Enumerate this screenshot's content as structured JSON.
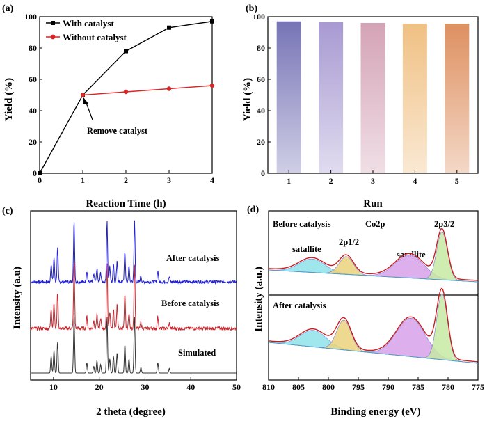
{
  "figure": {
    "panel_a": "(a)",
    "panel_b": "(b)",
    "panel_c": "(c)",
    "panel_d": "(d)"
  },
  "chart_data": [
    {
      "panel": "(a)",
      "type": "line",
      "title": "",
      "xlabel": "Reaction Time (h)",
      "ylabel": "Yield (%)",
      "xlim": [
        0,
        4
      ],
      "ylim": [
        0,
        100
      ],
      "xticks": [
        "0",
        "1",
        "2",
        "3",
        "4"
      ],
      "yticks": [
        "0",
        "20",
        "40",
        "60",
        "80",
        "100"
      ],
      "legend_position": "top-left",
      "series": [
        {
          "name": "With catalyst",
          "color": "#000000",
          "marker": "square",
          "x": [
            0,
            1,
            2,
            3,
            4
          ],
          "y": [
            0,
            50,
            78,
            93,
            97
          ]
        },
        {
          "name": "Without catalyst",
          "color": "#d62728",
          "marker": "circle",
          "x": [
            1,
            2,
            3,
            4
          ],
          "y": [
            50,
            52,
            54,
            56
          ]
        }
      ],
      "annotations": [
        {
          "text": "Remove catalyst",
          "x": 1,
          "y": 50
        }
      ]
    },
    {
      "panel": "(b)",
      "type": "bar",
      "title": "",
      "xlabel": "Run",
      "ylabel": "Yield (%)",
      "ylim": [
        0,
        100
      ],
      "yticks": [
        "0",
        "20",
        "40",
        "60",
        "80",
        "100"
      ],
      "categories": [
        "1",
        "2",
        "3",
        "4",
        "5"
      ],
      "values": [
        97,
        96.5,
        96,
        95.5,
        95.5
      ],
      "colors": [
        "#7774b6",
        "#a89ad2",
        "#d4a3b6",
        "#f0c083",
        "#de9060"
      ]
    },
    {
      "panel": "(c)",
      "type": "line",
      "title": "",
      "xlabel": "2 theta (degree)",
      "ylabel": "Intensity (a.u)",
      "xlim": [
        5,
        50
      ],
      "xticks": [
        "10",
        "20",
        "30",
        "40",
        "50"
      ],
      "series": [
        {
          "name": "After catalysis",
          "color": "#1f1fd6",
          "offset": 2
        },
        {
          "name": "Before catalysis",
          "color": "#c8272e",
          "offset": 1
        },
        {
          "name": "Simulated",
          "color": "#333333",
          "offset": 0
        }
      ],
      "peaks_2theta": [
        9.5,
        10.1,
        10.9,
        14.5,
        17.3,
        18.8,
        19.5,
        20.3,
        21.7,
        22.3,
        23.1,
        23.9,
        25.6,
        26.5,
        27.7,
        29.1,
        32.8,
        35.3
      ],
      "peak_heights": [
        0.3,
        0.4,
        0.55,
        1.0,
        0.18,
        0.12,
        0.22,
        0.15,
        1.0,
        0.25,
        0.3,
        0.35,
        0.5,
        0.25,
        1.0,
        0.1,
        0.18,
        0.08
      ]
    },
    {
      "panel": "(d)",
      "type": "line",
      "title": "Co2p",
      "xlabel": "Binding energy (eV)",
      "ylabel": "Intensity (a.u.)",
      "xlim": [
        810,
        775
      ],
      "xticks": [
        "810",
        "805",
        "800",
        "795",
        "790",
        "785",
        "780",
        "775"
      ],
      "peak_labels": [
        "satallite",
        "2p1/2",
        "satallite",
        "2p3/2"
      ],
      "spectra": [
        {
          "name": "Before catalysis",
          "components": [
            {
              "center": 802.7,
              "height": 0.28,
              "fill": "#8ee2ea"
            },
            {
              "center": 797.0,
              "height": 0.37,
              "fill": "#ead27c"
            },
            {
              "center": 786.4,
              "height": 0.48,
              "fill": "#d7a1ea"
            },
            {
              "center": 781.0,
              "height": 1.0,
              "fill": "#c7e9a3"
            }
          ]
        },
        {
          "name": "After catalysis",
          "components": [
            {
              "center": 802.5,
              "height": 0.25,
              "fill": "#8ee2ea"
            },
            {
              "center": 797.4,
              "height": 0.45,
              "fill": "#ead27c"
            },
            {
              "center": 786.2,
              "height": 0.58,
              "fill": "#d7a1ea"
            },
            {
              "center": 781.0,
              "height": 1.0,
              "fill": "#c7e9a3"
            }
          ]
        }
      ]
    }
  ]
}
